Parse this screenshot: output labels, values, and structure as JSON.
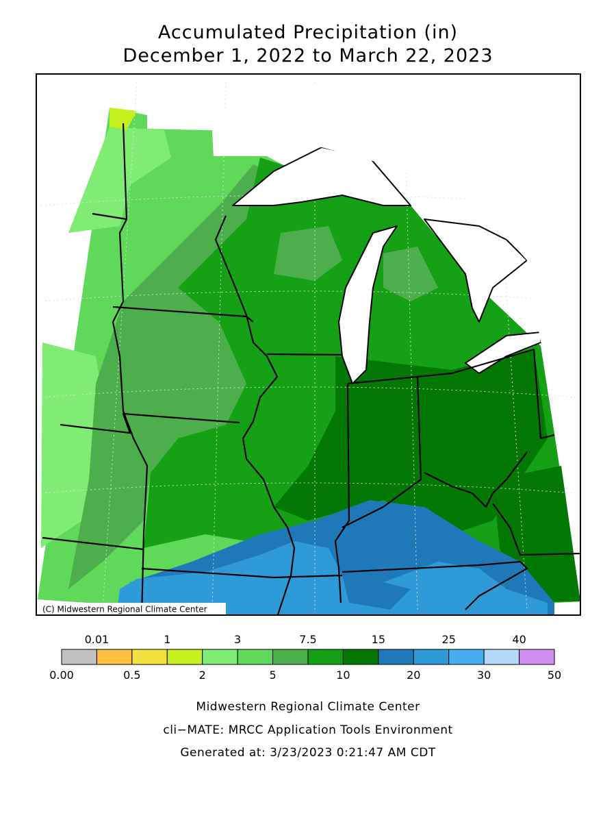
{
  "title": [
    "Accumulated Precipitation (in)",
    "December 1, 2022 to March 22, 2023"
  ],
  "credit": "(C) Midwestern Regional Climate Center",
  "legend": {
    "colors": [
      "#c0c0c0",
      "#ffbf40",
      "#f2e040",
      "#c6ef1e",
      "#80ec74",
      "#60d85a",
      "#4caf4c",
      "#16a016",
      "#047804",
      "#1f78b8",
      "#2e9ad8",
      "#46aef0",
      "#b4d8f8",
      "#d08ef0"
    ],
    "labels": [
      "0.00",
      "0.01",
      "0.5",
      "1",
      "2",
      "3",
      "5",
      "7.5",
      "10",
      "15",
      "20",
      "25",
      "30",
      "40",
      "50"
    ]
  },
  "footer": [
    "Midwestern Regional Climate Center",
    "cli−MATE: MRCC Application Tools Environment",
    "Generated at: 3/23/2023 0:21:47 AM CDT"
  ]
}
